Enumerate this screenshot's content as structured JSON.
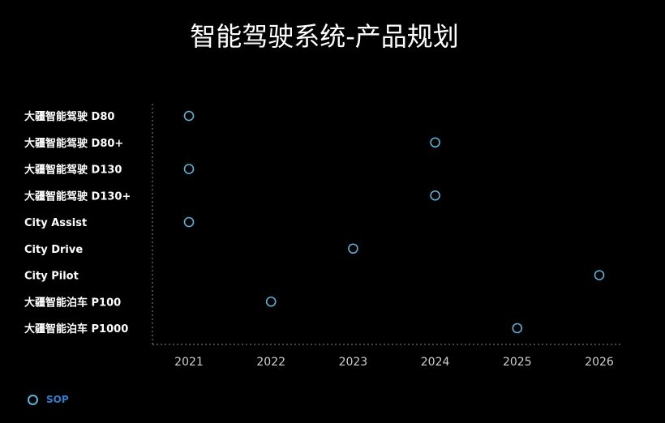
{
  "chart_data": {
    "type": "scatter",
    "title": "智能驾驶系统-产品规划",
    "xlabel": "",
    "ylabel": "",
    "x_ticks": [
      "2021",
      "2022",
      "2023",
      "2024",
      "2025",
      "2026"
    ],
    "xlim": [
      2021,
      2026
    ],
    "categories": [
      "大疆智能驾驶 D80",
      "大疆智能驾驶 D80+",
      "大疆智能驾驶 D130",
      "大疆智能驾驶 D130+",
      "City Assist",
      "City Drive",
      "City Pilot",
      "大疆智能泊车 P100",
      "大疆智能泊车 P1000"
    ],
    "series": [
      {
        "name": "SOP",
        "points": [
          {
            "category": "大疆智能驾驶 D80",
            "x": 2021
          },
          {
            "category": "大疆智能驾驶 D80+",
            "x": 2024
          },
          {
            "category": "大疆智能驾驶 D130",
            "x": 2021
          },
          {
            "category": "大疆智能驾驶 D130+",
            "x": 2024
          },
          {
            "category": "City Assist",
            "x": 2021
          },
          {
            "category": "City Drive",
            "x": 2023
          },
          {
            "category": "City Pilot",
            "x": 2026
          },
          {
            "category": "大疆智能泊车 P100",
            "x": 2022
          },
          {
            "category": "大疆智能泊车 P1000",
            "x": 2025
          }
        ]
      }
    ],
    "legend": {
      "position": "bottom-left",
      "entries": [
        "SOP"
      ]
    },
    "grid": false,
    "colors": {
      "background": "#000000",
      "marker": "#5eb1d6",
      "legend_text": "#2f7fd0",
      "axis": "#8a8a8a",
      "text": "#ffffff",
      "tick_text": "#cfcfcf"
    }
  }
}
